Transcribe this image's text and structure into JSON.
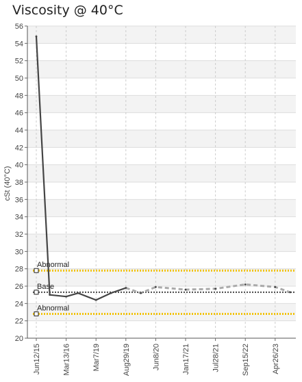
{
  "chart_data": {
    "type": "line",
    "title": "Viscosity @ 40°C",
    "ylabel": "cSt (40°C)",
    "xlabel": "",
    "ylim": [
      20,
      56
    ],
    "y_ticks": [
      20,
      22,
      24,
      26,
      28,
      30,
      32,
      34,
      36,
      38,
      40,
      42,
      44,
      46,
      48,
      50,
      52,
      54,
      56
    ],
    "x_tick_labels": [
      "Jun12/15",
      "Mar13/16",
      "Mar7/19",
      "Aug29/19",
      "Jun8/20",
      "Jan17/21",
      "Jul28/21",
      "Sep15/22",
      "Apr26/23"
    ],
    "grid": true,
    "reference_lines": [
      {
        "name": "Abnormal",
        "value": 27.8,
        "color": "#f2c200",
        "style": "dotted"
      },
      {
        "name": "Base",
        "value": 25.3,
        "color": "#555555",
        "style": "dotted"
      },
      {
        "name": "Abnormal",
        "value": 22.8,
        "color": "#f2c200",
        "style": "dotted"
      }
    ],
    "series": [
      {
        "color": "#444444",
        "solid_until_index": 6,
        "x": [
          0.0,
          0.45,
          1.0,
          1.4,
          2.0,
          2.5,
          3.0,
          3.5,
          4.0,
          5.0,
          6.0,
          7.0,
          8.0,
          8.5
        ],
        "y": [
          54.8,
          25.0,
          24.8,
          25.2,
          24.4,
          25.2,
          25.8,
          25.2,
          25.9,
          25.6,
          25.7,
          26.2,
          25.9,
          25.3
        ]
      }
    ]
  }
}
